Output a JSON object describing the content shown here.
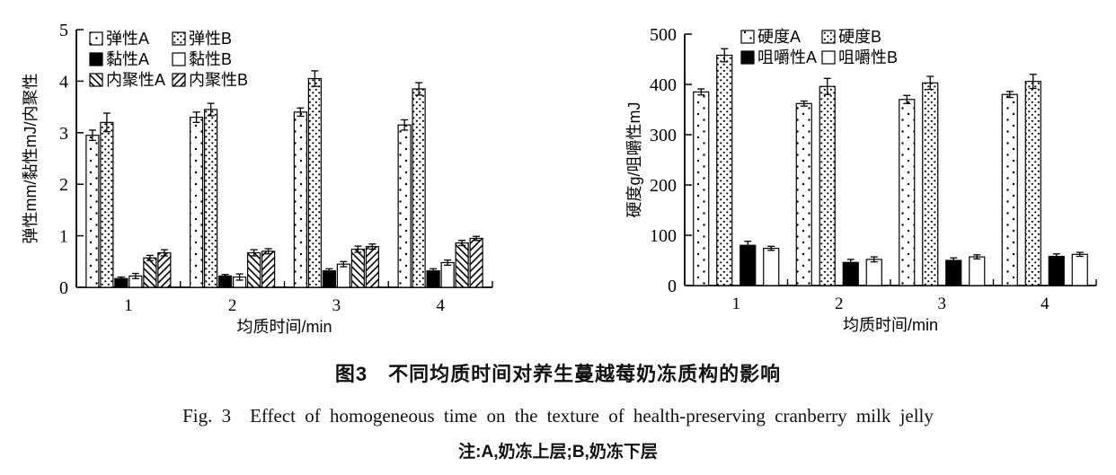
{
  "figure": {
    "caption_zh": "图3　不同均质时间对养生蔓越莓奶冻质构的影响",
    "caption_en": "Fig. 3　Effect of homogeneous time on the texture of health-preserving cranberry milk jelly",
    "note": "注:A,奶冻上层;B,奶冻下层",
    "ink_color": "#000000",
    "background_color": "#ffffff"
  },
  "chart_data": [
    {
      "type": "bar",
      "title": "",
      "xlabel": "均质时间/min",
      "ylabel": "弹性mm/黏性mJ/内聚性",
      "categories": [
        "1",
        "2",
        "3",
        "4"
      ],
      "ylim": [
        0,
        5
      ],
      "yticks": [
        0,
        1,
        2,
        3,
        4,
        5
      ],
      "grid": false,
      "legend_position": "inside-top-left",
      "series": [
        {
          "name": "弹性A",
          "pattern": "dots-sparse",
          "values": [
            2.95,
            3.3,
            3.4,
            3.15
          ],
          "errors": [
            0.1,
            0.1,
            0.08,
            0.1
          ]
        },
        {
          "name": "弹性B",
          "pattern": "dots-dense",
          "values": [
            3.2,
            3.45,
            4.05,
            3.85
          ],
          "errors": [
            0.18,
            0.12,
            0.15,
            0.12
          ]
        },
        {
          "name": "黏性A",
          "pattern": "solid-black",
          "values": [
            0.17,
            0.22,
            0.32,
            0.32
          ],
          "errors": [
            0.03,
            0.03,
            0.04,
            0.04
          ]
        },
        {
          "name": "黏性B",
          "pattern": "solid-white",
          "values": [
            0.22,
            0.2,
            0.45,
            0.48
          ],
          "errors": [
            0.05,
            0.06,
            0.05,
            0.05
          ]
        },
        {
          "name": "内聚性A",
          "pattern": "hatch-back",
          "values": [
            0.57,
            0.67,
            0.74,
            0.86
          ],
          "errors": [
            0.05,
            0.06,
            0.06,
            0.05
          ]
        },
        {
          "name": "内聚性B",
          "pattern": "hatch-forward",
          "values": [
            0.67,
            0.7,
            0.79,
            0.95
          ],
          "errors": [
            0.06,
            0.05,
            0.05,
            0.04
          ]
        }
      ]
    },
    {
      "type": "bar",
      "title": "",
      "xlabel": "均质时间/min",
      "ylabel": "硬度g/咀嚼性mJ",
      "categories": [
        "1",
        "2",
        "3",
        "4"
      ],
      "ylim": [
        0,
        500
      ],
      "yticks": [
        0,
        100,
        200,
        300,
        400,
        500
      ],
      "grid": false,
      "legend_position": "inside-top-left",
      "series": [
        {
          "name": "硬度A",
          "pattern": "dots-sparse",
          "values": [
            385,
            362,
            370,
            380
          ],
          "errors": [
            6,
            5,
            8,
            6
          ]
        },
        {
          "name": "硬度B",
          "pattern": "dots-dense",
          "values": [
            458,
            396,
            403,
            406
          ],
          "errors": [
            13,
            16,
            13,
            14
          ]
        },
        {
          "name": "咀嚼性A",
          "pattern": "solid-black",
          "values": [
            80,
            46,
            50,
            58
          ],
          "errors": [
            8,
            6,
            5,
            5
          ]
        },
        {
          "name": "咀嚼性B",
          "pattern": "solid-white",
          "values": [
            74,
            52,
            57,
            62
          ],
          "errors": [
            4,
            5,
            4,
            4
          ]
        }
      ]
    }
  ]
}
